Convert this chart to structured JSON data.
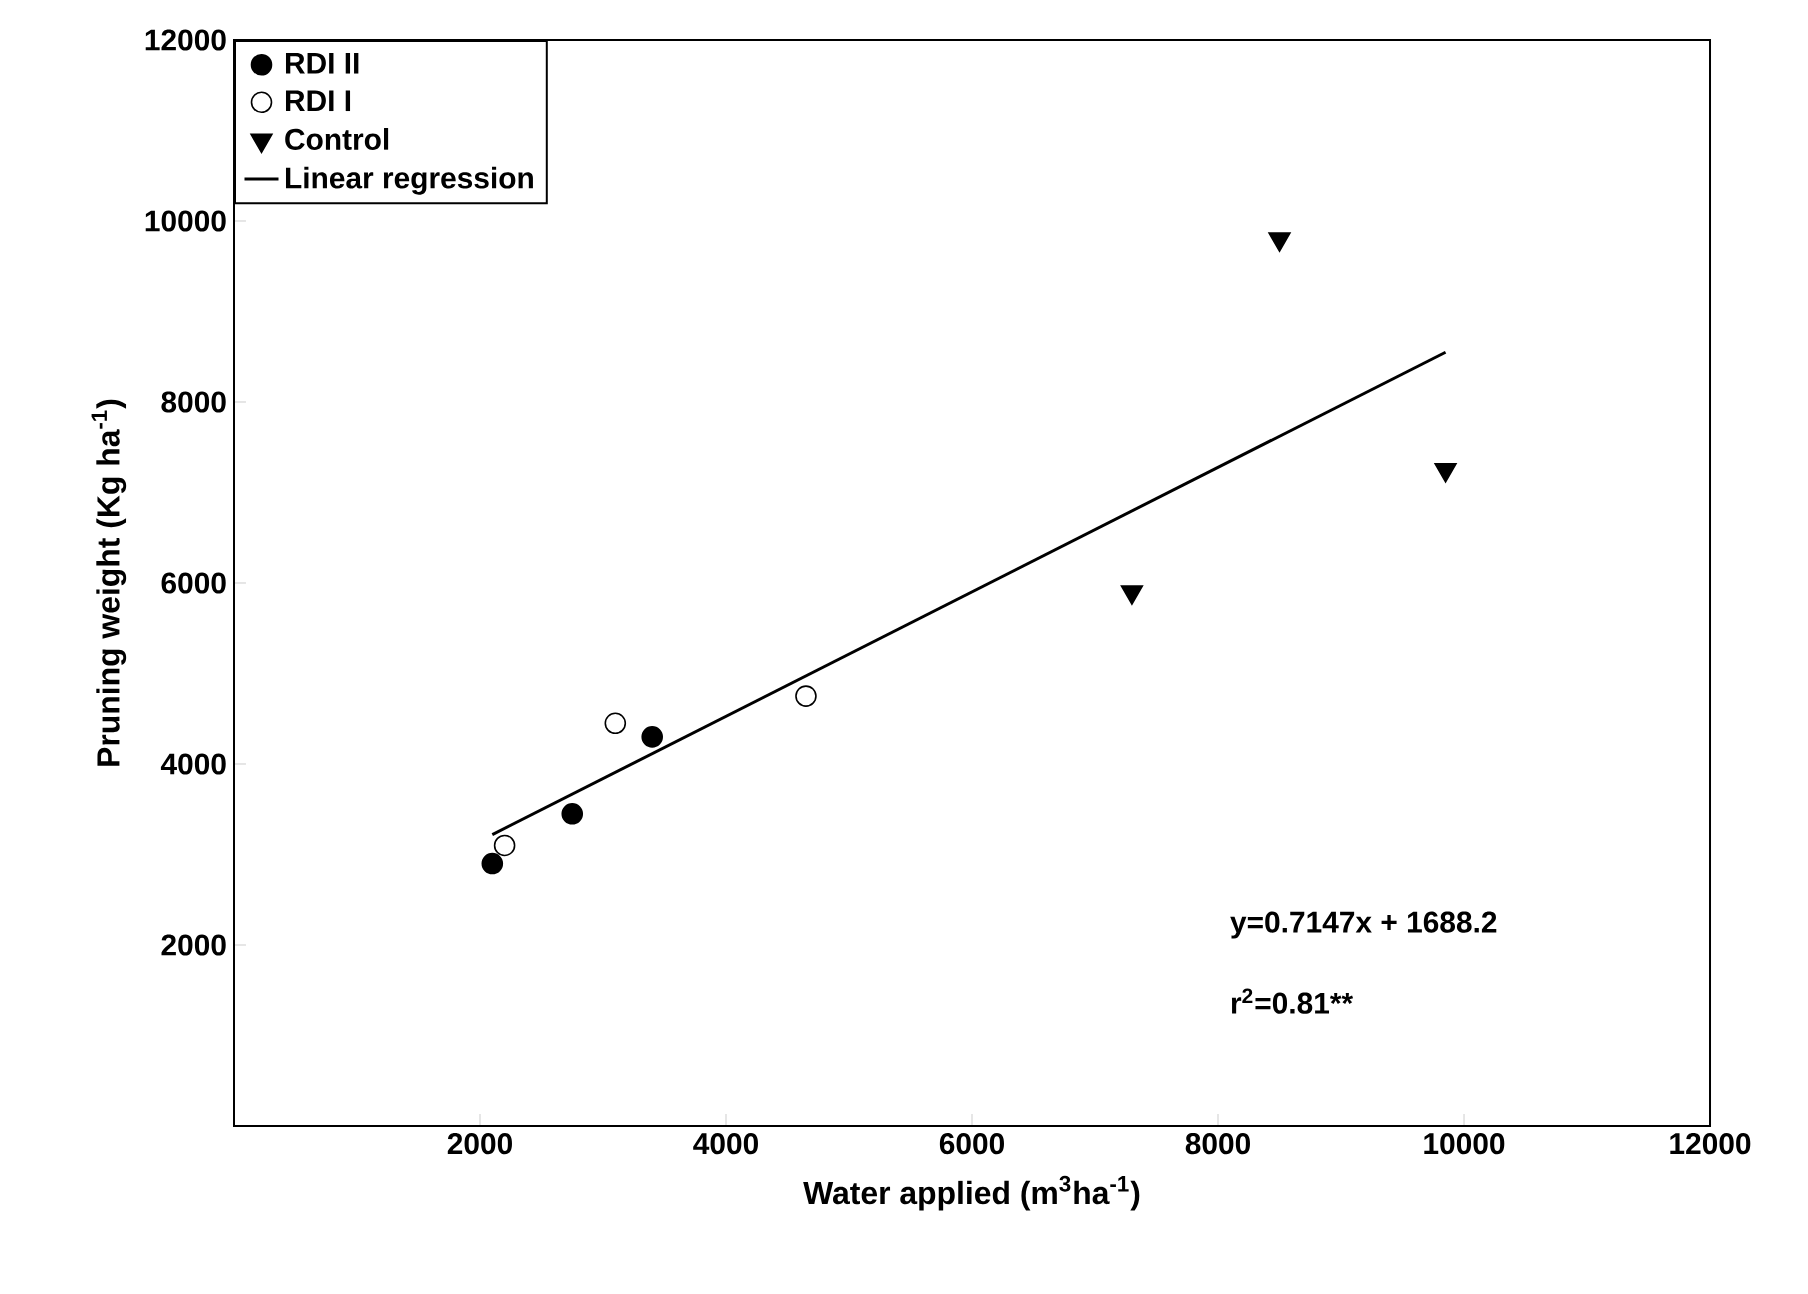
{
  "chart_data": {
    "type": "scatter",
    "xlabel": "Water applied (m$^{3}$ha$^{-1}$)",
    "ylabel": "Pruning weight (Kg ha$^{-1}$)",
    "xlim": [
      0,
      12000
    ],
    "ylim": [
      0,
      12000
    ],
    "xticks": [
      2000,
      4000,
      6000,
      8000,
      10000,
      12000
    ],
    "yticks": [
      2000,
      4000,
      6000,
      8000,
      10000,
      12000
    ],
    "legend": "top left",
    "grid": false,
    "series": [
      {
        "name": "RDI II",
        "color": "#000000",
        "marker": "circle",
        "x": [
          2100,
          2750,
          3400
        ],
        "values": [
          2900,
          3450,
          4300
        ]
      },
      {
        "name": "RDI I",
        "color": "#ffffff",
        "marker": "circle",
        "x": [
          2200,
          3100,
          4650
        ],
        "values": [
          3100,
          4450,
          4750
        ]
      },
      {
        "name": "Control",
        "color": "#000000",
        "marker": "triangle",
        "x": [
          7300,
          8500,
          9850
        ],
        "values": [
          5900,
          9800,
          7250
        ]
      },
      {
        "name": "Linear regression",
        "color": "#000000",
        "type": "line",
        "marker": "none",
        "x": [
          2100,
          9850
        ],
        "values": [
          3220,
          8550
        ]
      }
    ],
    "annotations": [
      "y=0.7147x + 1688.2",
      "r$^{2}$=0.81**"
    ]
  }
}
